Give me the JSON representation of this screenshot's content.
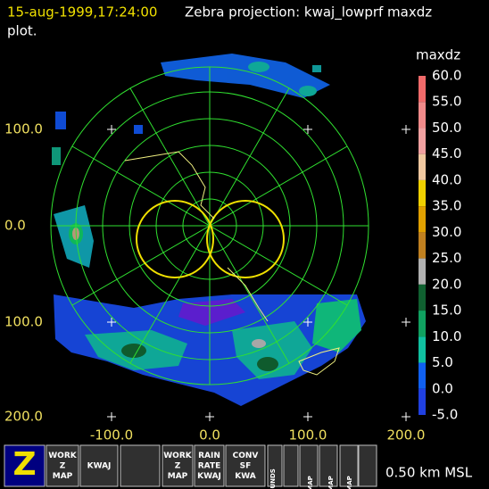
{
  "header": {
    "timestamp": "15-aug-1999,17:24:00",
    "title": "Zebra projection: kwaj_lowprf maxdz",
    "title_cont": "plot."
  },
  "axes": {
    "x_labels": [
      "-100.0",
      "0.0",
      "100.0",
      "200.0"
    ],
    "y_labels": [
      "100.0",
      "0.0",
      "100.0",
      "200.0"
    ]
  },
  "colorbar": {
    "title": "maxdz",
    "labels": [
      "60.0",
      "55.0",
      "50.0",
      "45.0",
      "40.0",
      "35.0",
      "30.0",
      "25.0",
      "20.0",
      "15.0",
      "10.0",
      "5.0",
      "0.0",
      "-5.0"
    ],
    "colors": [
      "#f06a6a",
      "#f08a8a",
      "#f0a0a0",
      "#f0c8a0",
      "#f0d000",
      "#e0a000",
      "#c08020",
      "#b0b0b0",
      "#106030",
      "#10a060",
      "#10c0a0",
      "#1060f0",
      "#2040e0",
      "#7020e0"
    ]
  },
  "toolbar": {
    "buttons": [
      [
        "Z"
      ],
      [
        "WORK",
        "Z",
        "MAP"
      ],
      [
        "KWAJ"
      ],
      [],
      [
        "WORK",
        "Z",
        "MAP"
      ],
      [
        "RAIN",
        "RATE",
        "KWAJ"
      ],
      [
        "CONV",
        "SF",
        "KWA"
      ],
      [],
      [
        "BOUNDS"
      ],
      [],
      [
        "MAP"
      ],
      [
        "MAP"
      ],
      [
        "MAP"
      ]
    ]
  },
  "status": "0.50 km MSL"
}
